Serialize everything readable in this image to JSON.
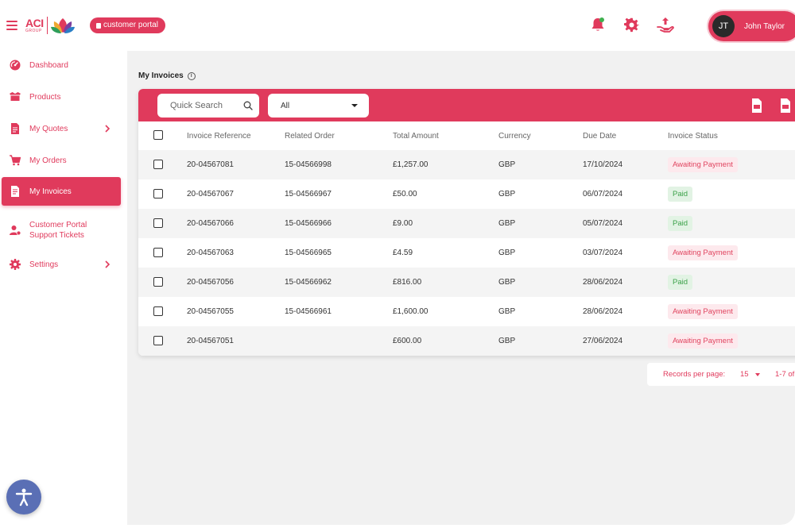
{
  "brand": {
    "logo_main": "ACI",
    "logo_sub": "GROUP",
    "portal_badge": "customer portal"
  },
  "header": {
    "icons": [
      "bell-icon",
      "gear-icon",
      "hand-upload-icon"
    ],
    "user": {
      "initials": "JT",
      "name": "John Taylor"
    }
  },
  "sidebar": {
    "items": [
      {
        "label": "Dashboard",
        "icon": "dashboard-icon"
      },
      {
        "label": "Products",
        "icon": "box-icon"
      },
      {
        "label": "My Quotes",
        "icon": "quote-icon",
        "has_children": true
      },
      {
        "label": "My Orders",
        "icon": "cart-icon"
      },
      {
        "label": "My Invoices",
        "icon": "invoice-icon",
        "active": true
      },
      {
        "label": "Customer Portal Support Tickets",
        "icon": "support-user-icon"
      },
      {
        "label": "Settings",
        "icon": "gear-icon",
        "has_children": true
      }
    ]
  },
  "main": {
    "title": "My Invoices",
    "search": {
      "placeholder": "Quick Search"
    },
    "filter": {
      "selected": "All"
    },
    "export_icons": [
      "csv-file-icon",
      "pdf-file-icon"
    ],
    "table": {
      "columns": [
        "Invoice Reference",
        "Related Order",
        "Total Amount",
        "Currency",
        "Due Date",
        "Invoice Status"
      ],
      "rows": [
        {
          "ref": "20-04567081",
          "order": "15-04566998",
          "amount": "£1,257.00",
          "currency": "GBP",
          "due": "17/10/2024",
          "status": "Awaiting Payment",
          "status_type": "awaiting"
        },
        {
          "ref": "20-04567067",
          "order": "15-04566967",
          "amount": "£50.00",
          "currency": "GBP",
          "due": "06/07/2024",
          "status": "Paid",
          "status_type": "paid"
        },
        {
          "ref": "20-04567066",
          "order": "15-04566966",
          "amount": "£9.00",
          "currency": "GBP",
          "due": "05/07/2024",
          "status": "Paid",
          "status_type": "paid"
        },
        {
          "ref": "20-04567063",
          "order": "15-04566965",
          "amount": "£4.59",
          "currency": "GBP",
          "due": "03/07/2024",
          "status": "Awaiting Payment",
          "status_type": "awaiting"
        },
        {
          "ref": "20-04567056",
          "order": "15-04566962",
          "amount": "£816.00",
          "currency": "GBP",
          "due": "28/06/2024",
          "status": "Paid",
          "status_type": "paid"
        },
        {
          "ref": "20-04567055",
          "order": "15-04566961",
          "amount": "£1,600.00",
          "currency": "GBP",
          "due": "28/06/2024",
          "status": "Awaiting Payment",
          "status_type": "awaiting"
        },
        {
          "ref": "20-04567051",
          "order": "",
          "amount": "£600.00",
          "currency": "GBP",
          "due": "27/06/2024",
          "status": "Awaiting Payment",
          "status_type": "awaiting"
        }
      ]
    },
    "pager": {
      "records_label": "Records per page:",
      "records_value": "15",
      "range": "1-7 of"
    }
  },
  "colors": {
    "accent": "#e03a5c",
    "paid": "#3ca24a",
    "accessibility": "#5a6fb5"
  }
}
